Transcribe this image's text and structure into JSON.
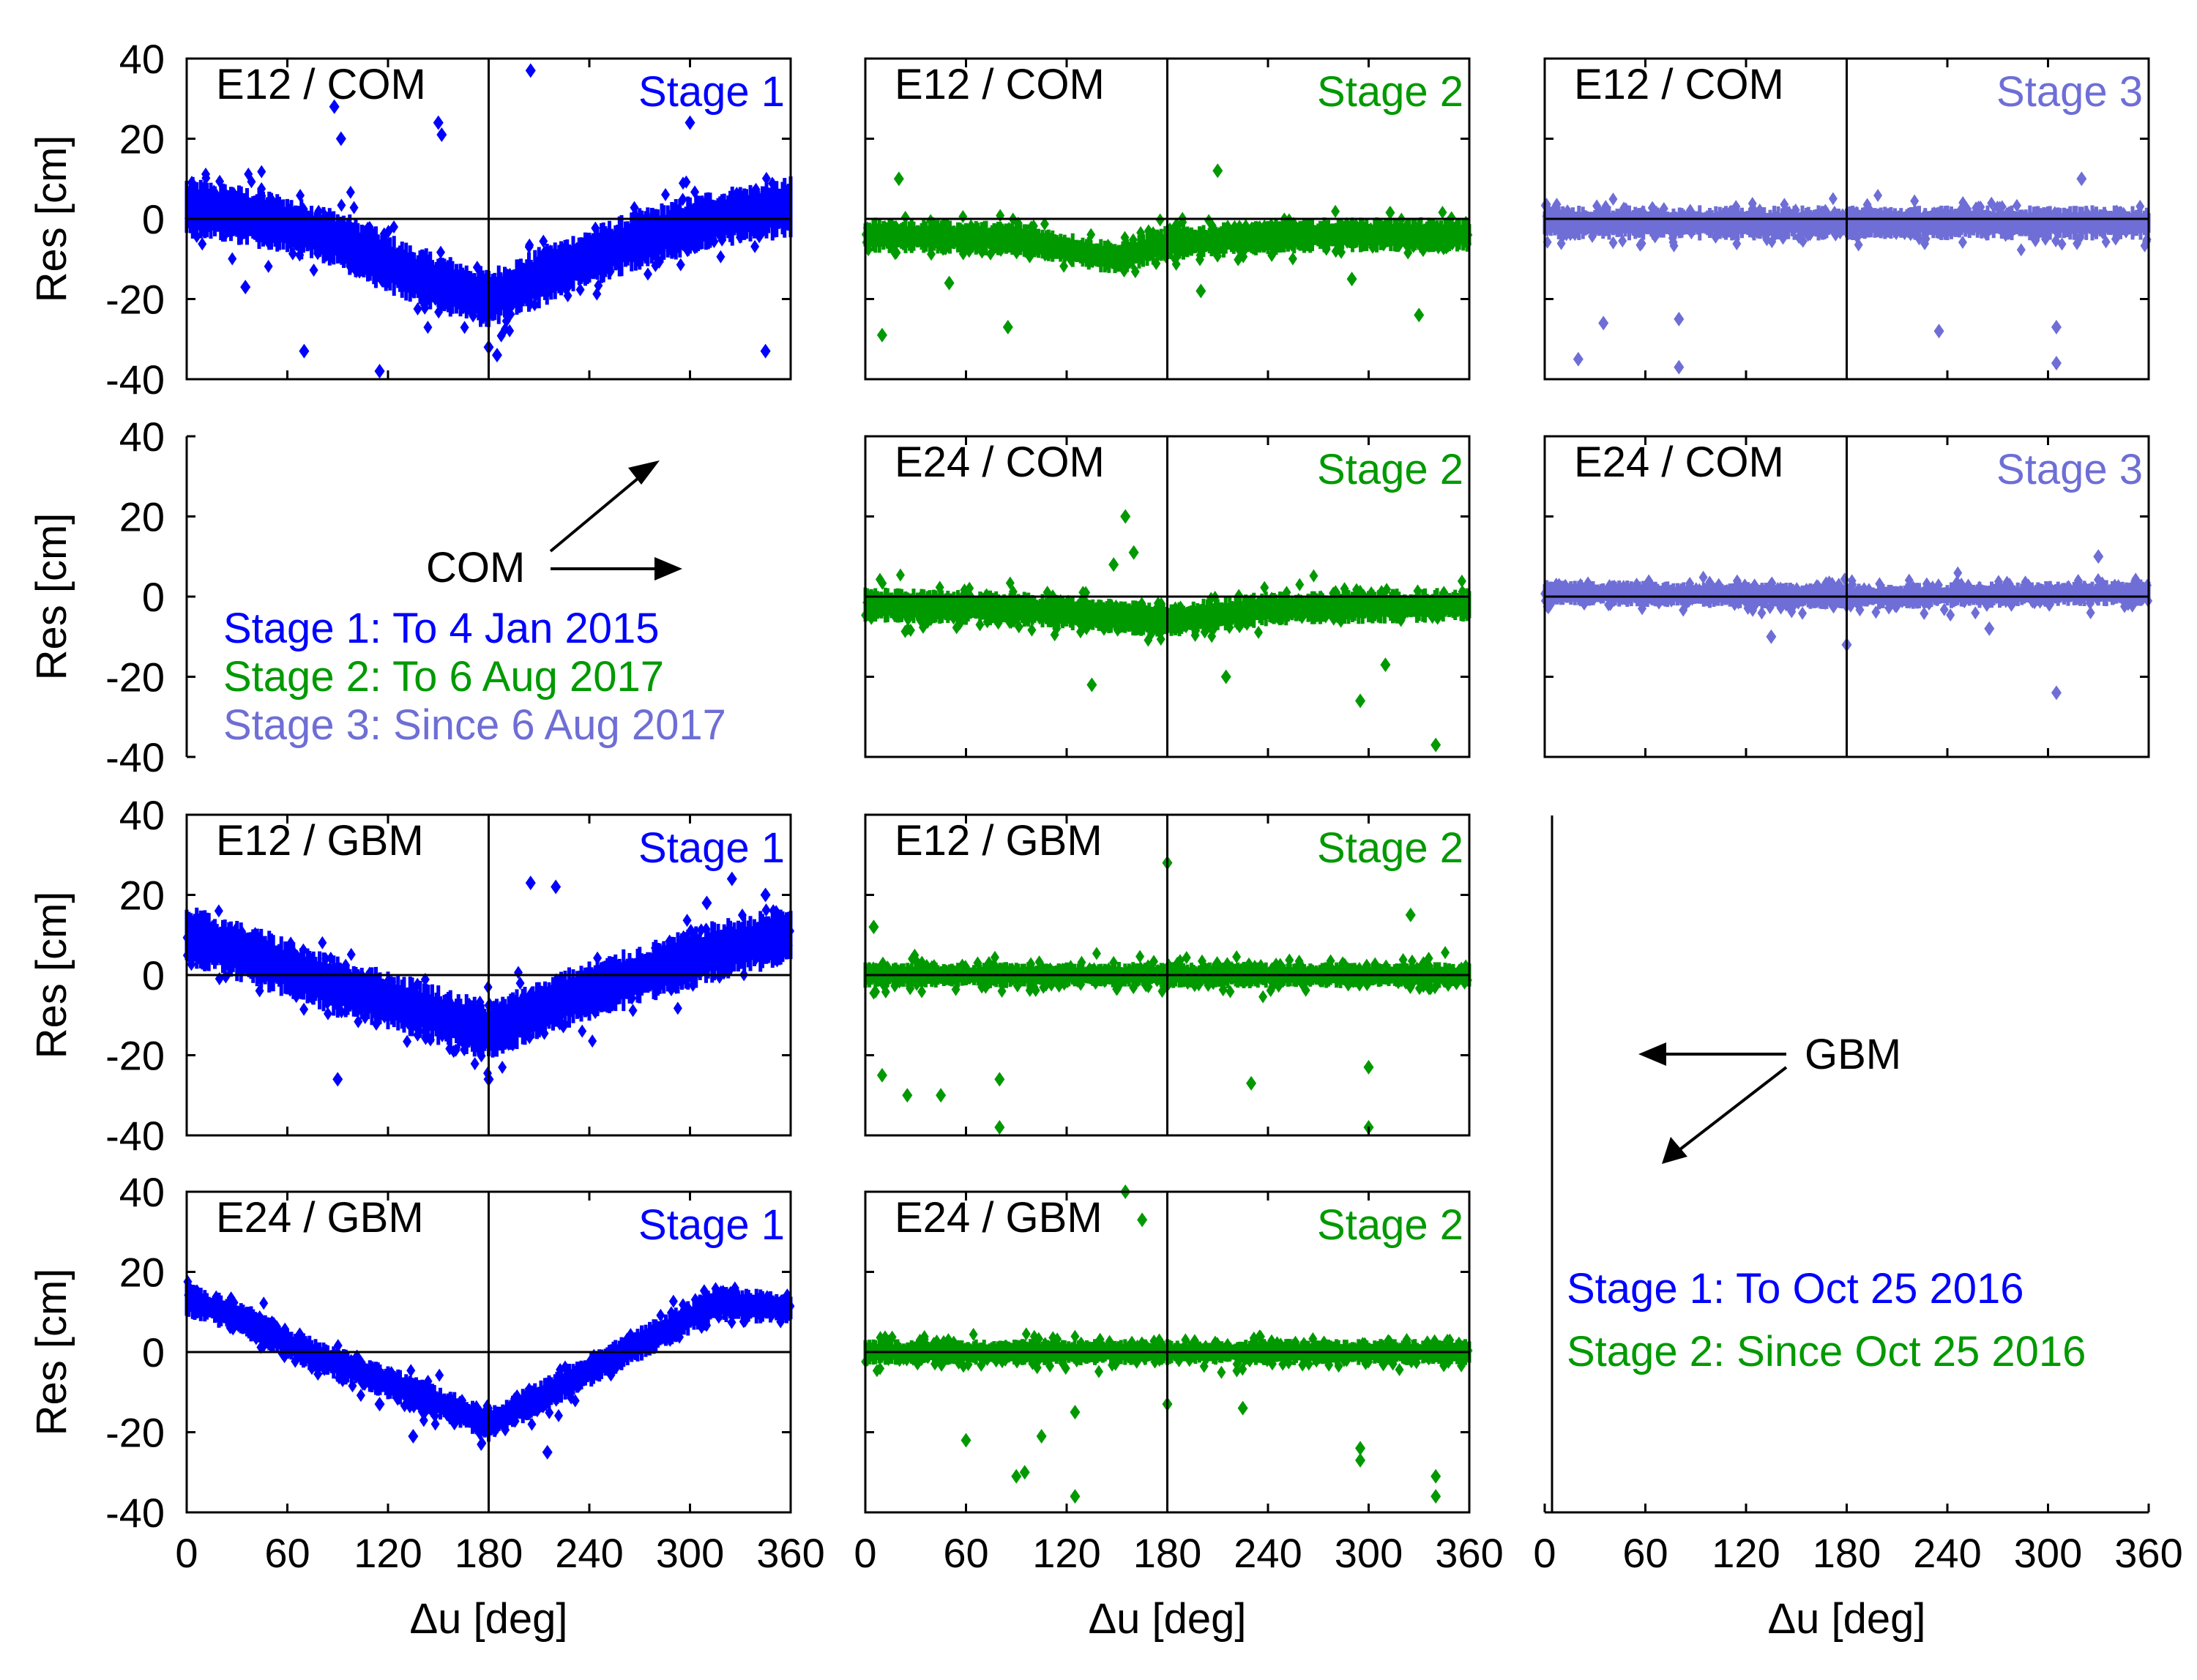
{
  "figure": {
    "ylabel": "Res [cm]",
    "xlabel": "Δu [deg]"
  },
  "colors": {
    "stage1": "#0000ff",
    "stage2": "#009900",
    "stage3": "#6e6ed6",
    "axis": "#000000"
  },
  "axes": {
    "x_ticks": [
      0,
      60,
      120,
      180,
      240,
      300,
      360
    ],
    "y_ticks": [
      40,
      20,
      0,
      -20,
      -40
    ],
    "xlim": [
      0,
      360
    ],
    "ylim": [
      -40,
      40
    ]
  },
  "legend_com": {
    "arrow_label": "COM",
    "stage1": "Stage 1: To 4 Jan 2015",
    "stage2": "Stage 2: To 6 Aug 2017",
    "stage3": "Stage 3: Since 6 Aug 2017"
  },
  "legend_gbm": {
    "arrow_label": "GBM",
    "stage1": "Stage 1: To Oct 25 2016",
    "stage2": "Stage 2: Since Oct 25 2016"
  },
  "chart_data": [
    {
      "type": "scatter",
      "row": 0,
      "col": 0,
      "label": "E12 / COM",
      "stage": "Stage 1",
      "color_key": "stage1",
      "trend": [
        [
          0,
          3
        ],
        [
          45,
          0
        ],
        [
          90,
          -5
        ],
        [
          135,
          -14
        ],
        [
          180,
          -20
        ],
        [
          225,
          -12
        ],
        [
          270,
          -5
        ],
        [
          315,
          0
        ],
        [
          360,
          3
        ]
      ],
      "spread": 7,
      "outliers": [
        [
          88,
          28
        ],
        [
          92,
          20
        ],
        [
          150,
          24
        ],
        [
          152,
          21
        ],
        [
          205,
          37
        ],
        [
          180,
          -32
        ],
        [
          185,
          -34
        ],
        [
          115,
          -38
        ],
        [
          70,
          -33
        ],
        [
          345,
          -33
        ],
        [
          35,
          -17
        ],
        [
          300,
          24
        ]
      ]
    },
    {
      "type": "scatter",
      "row": 0,
      "col": 1,
      "label": "E12 / COM",
      "stage": "Stage 2",
      "color_key": "stage2",
      "trend": [
        [
          0,
          -4
        ],
        [
          90,
          -5
        ],
        [
          150,
          -10
        ],
        [
          180,
          -6
        ],
        [
          270,
          -4
        ],
        [
          360,
          -4
        ]
      ],
      "spread": 4,
      "outliers": [
        [
          20,
          10
        ],
        [
          10,
          -29
        ],
        [
          85,
          -27
        ],
        [
          50,
          -16
        ],
        [
          210,
          12
        ],
        [
          330,
          -24
        ],
        [
          290,
          -15
        ],
        [
          200,
          -18
        ]
      ]
    },
    {
      "type": "scatter",
      "row": 0,
      "col": 2,
      "label": "E12 / COM",
      "stage": "Stage 3",
      "color_key": "stage3",
      "trend": [
        [
          0,
          -1
        ],
        [
          180,
          -1
        ],
        [
          360,
          -1
        ]
      ],
      "spread": 4,
      "outliers": [
        [
          20,
          -35
        ],
        [
          35,
          -26
        ],
        [
          80,
          -37
        ],
        [
          80,
          -25
        ],
        [
          235,
          -28
        ],
        [
          305,
          -36
        ],
        [
          305,
          -27
        ],
        [
          320,
          10
        ]
      ]
    },
    {
      "type": "scatter",
      "row": 1,
      "col": 1,
      "label": "E24 / COM",
      "stage": "Stage 2",
      "color_key": "stage2",
      "trend": [
        [
          0,
          -2
        ],
        [
          90,
          -3
        ],
        [
          150,
          -5
        ],
        [
          180,
          -6
        ],
        [
          240,
          -3
        ],
        [
          360,
          -2
        ]
      ],
      "spread": 4,
      "outliers": [
        [
          155,
          20
        ],
        [
          160,
          11
        ],
        [
          148,
          8
        ],
        [
          135,
          -22
        ],
        [
          295,
          -26
        ],
        [
          340,
          -37
        ],
        [
          310,
          -17
        ],
        [
          215,
          -20
        ]
      ]
    },
    {
      "type": "scatter",
      "row": 1,
      "col": 2,
      "label": "E24 / COM",
      "stage": "Stage 3",
      "color_key": "stage3",
      "trend": [
        [
          0,
          1
        ],
        [
          180,
          0
        ],
        [
          360,
          1
        ]
      ],
      "spread": 3,
      "outliers": [
        [
          305,
          -24
        ],
        [
          330,
          10
        ],
        [
          180,
          -12
        ],
        [
          135,
          -10
        ],
        [
          265,
          -8
        ]
      ]
    },
    {
      "type": "scatter",
      "row": 2,
      "col": 0,
      "label": "E12 / GBM",
      "stage": "Stage 1",
      "color_key": "stage1",
      "trend": [
        [
          0,
          10
        ],
        [
          45,
          4
        ],
        [
          90,
          -3
        ],
        [
          135,
          -8
        ],
        [
          180,
          -14
        ],
        [
          225,
          -6
        ],
        [
          270,
          0
        ],
        [
          315,
          6
        ],
        [
          360,
          10
        ]
      ],
      "spread": 7,
      "outliers": [
        [
          90,
          -26
        ],
        [
          180,
          -26
        ],
        [
          205,
          23
        ],
        [
          220,
          22
        ],
        [
          310,
          18
        ],
        [
          325,
          24
        ],
        [
          345,
          20
        ]
      ]
    },
    {
      "type": "scatter",
      "row": 2,
      "col": 1,
      "label": "E12 / GBM",
      "stage": "Stage 2",
      "color_key": "stage2",
      "trend": [
        [
          0,
          0
        ],
        [
          180,
          0
        ],
        [
          360,
          0
        ]
      ],
      "spread": 3,
      "outliers": [
        [
          180,
          28
        ],
        [
          10,
          -25
        ],
        [
          25,
          -30
        ],
        [
          45,
          -30
        ],
        [
          80,
          -38
        ],
        [
          80,
          -26
        ],
        [
          300,
          -38
        ],
        [
          300,
          -23
        ],
        [
          230,
          -27
        ],
        [
          325,
          15
        ],
        [
          5,
          12
        ]
      ]
    },
    {
      "type": "scatter",
      "row": 3,
      "col": 0,
      "label": "E24 / GBM",
      "stage": "Stage 1",
      "color_key": "stage1",
      "trend": [
        [
          0,
          13
        ],
        [
          30,
          9
        ],
        [
          60,
          2
        ],
        [
          90,
          -3
        ],
        [
          135,
          -10
        ],
        [
          180,
          -18
        ],
        [
          225,
          -8
        ],
        [
          270,
          2
        ],
        [
          315,
          12
        ],
        [
          360,
          11
        ]
      ],
      "spread": 4,
      "outliers": [
        [
          115,
          -13
        ],
        [
          135,
          -21
        ],
        [
          215,
          -25
        ]
      ]
    },
    {
      "type": "scatter",
      "row": 3,
      "col": 1,
      "label": "E24 / GBM",
      "stage": "Stage 2",
      "color_key": "stage2",
      "trend": [
        [
          0,
          0
        ],
        [
          180,
          0
        ],
        [
          360,
          0
        ]
      ],
      "spread": 3,
      "outliers": [
        [
          155,
          40
        ],
        [
          165,
          33
        ],
        [
          180,
          -13
        ],
        [
          60,
          -22
        ],
        [
          95,
          -30
        ],
        [
          90,
          -31
        ],
        [
          105,
          -21
        ],
        [
          125,
          -36
        ],
        [
          125,
          -15
        ],
        [
          295,
          -24
        ],
        [
          295,
          -27
        ],
        [
          340,
          -31
        ],
        [
          340,
          -36
        ],
        [
          225,
          -14
        ]
      ]
    }
  ]
}
